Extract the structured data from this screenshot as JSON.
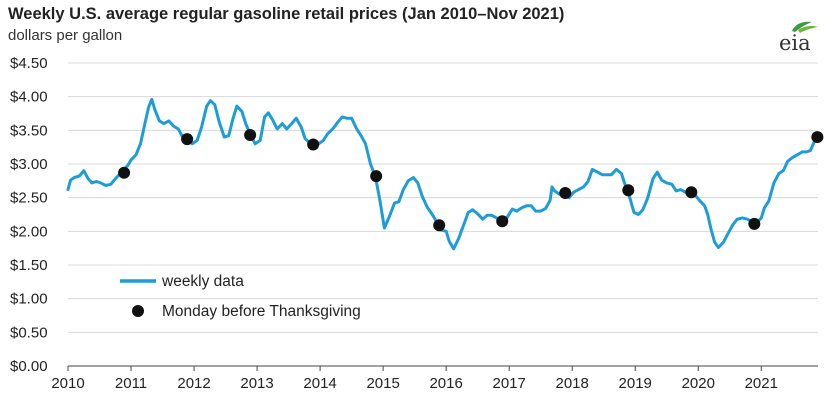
{
  "title": "Weekly U.S. average regular gasoline retail prices (Jan 2010–Nov 2021)",
  "subtitle": "dollars per gallon",
  "logo_text": "eia",
  "colors": {
    "line": "#1e9cd7",
    "marker": "#111111",
    "grid": "#d8d8d8",
    "axis": "#444444"
  },
  "chart_data": {
    "type": "line",
    "title": "Weekly U.S. average regular gasoline retail prices (Jan 2010–Nov 2021)",
    "ylabel": "dollars per gallon",
    "xlim": [
      2010,
      2021.9
    ],
    "ylim": [
      0,
      4.5
    ],
    "grid": true,
    "y_ticks": [
      0,
      0.5,
      1.0,
      1.5,
      2.0,
      2.5,
      3.0,
      3.5,
      4.0,
      4.5
    ],
    "y_tick_labels": [
      "$0.00",
      "$0.50",
      "$1.00",
      "$1.50",
      "$2.00",
      "$2.50",
      "$3.00",
      "$3.50",
      "$4.00",
      "$4.50"
    ],
    "x_ticks": [
      2010,
      2011,
      2012,
      2013,
      2014,
      2015,
      2016,
      2017,
      2018,
      2019,
      2020,
      2021
    ],
    "x_tick_labels": [
      "2010",
      "2011",
      "2012",
      "2013",
      "2014",
      "2015",
      "2016",
      "2017",
      "2018",
      "2019",
      "2020",
      "2021"
    ],
    "legend": [
      {
        "label": "weekly data",
        "kind": "line"
      },
      {
        "label": "Monday before Thanksgiving",
        "kind": "marker"
      }
    ],
    "series": [
      {
        "name": "weekly data",
        "x": [
          2010.0,
          2010.04,
          2010.1,
          2010.18,
          2010.25,
          2010.32,
          2010.38,
          2010.45,
          2010.52,
          2010.6,
          2010.68,
          2010.75,
          2010.85,
          2010.95,
          2011.0,
          2011.08,
          2011.15,
          2011.22,
          2011.28,
          2011.33,
          2011.38,
          2011.45,
          2011.52,
          2011.6,
          2011.68,
          2011.75,
          2011.82,
          2011.9,
          2011.97,
          2012.05,
          2012.12,
          2012.2,
          2012.26,
          2012.33,
          2012.4,
          2012.48,
          2012.55,
          2012.62,
          2012.68,
          2012.72,
          2012.76,
          2012.82,
          2012.9,
          2012.97,
          2013.05,
          2013.12,
          2013.18,
          2013.25,
          2013.32,
          2013.4,
          2013.47,
          2013.55,
          2013.62,
          2013.7,
          2013.76,
          2013.85,
          2013.95,
          2014.05,
          2014.12,
          2014.2,
          2014.28,
          2014.35,
          2014.42,
          2014.5,
          2014.58,
          2014.65,
          2014.72,
          2014.8,
          2014.88,
          2014.95,
          2015.02,
          2015.1,
          2015.18,
          2015.25,
          2015.32,
          2015.4,
          2015.48,
          2015.55,
          2015.62,
          2015.7,
          2015.78,
          2015.85,
          2015.92,
          2016.0,
          2016.05,
          2016.12,
          2016.2,
          2016.28,
          2016.35,
          2016.42,
          2016.5,
          2016.58,
          2016.65,
          2016.72,
          2016.8,
          2016.88,
          2016.95,
          2017.05,
          2017.12,
          2017.2,
          2017.28,
          2017.35,
          2017.42,
          2017.5,
          2017.58,
          2017.65,
          2017.68,
          2017.72,
          2017.8,
          2017.88,
          2017.95,
          2018.02,
          2018.1,
          2018.18,
          2018.25,
          2018.32,
          2018.4,
          2018.48,
          2018.55,
          2018.62,
          2018.7,
          2018.78,
          2018.85,
          2018.92,
          2018.98,
          2019.05,
          2019.12,
          2019.2,
          2019.28,
          2019.35,
          2019.42,
          2019.5,
          2019.58,
          2019.65,
          2019.72,
          2019.8,
          2019.88,
          2019.95,
          2020.02,
          2020.1,
          2020.15,
          2020.2,
          2020.26,
          2020.32,
          2020.4,
          2020.48,
          2020.55,
          2020.62,
          2020.7,
          2020.78,
          2020.85,
          2020.92,
          2021.0,
          2021.05,
          2021.12,
          2021.2,
          2021.28,
          2021.35,
          2021.42,
          2021.5,
          2021.58,
          2021.65,
          2021.72,
          2021.78,
          2021.85,
          2021.9
        ],
        "values": [
          2.62,
          2.76,
          2.8,
          2.82,
          2.9,
          2.78,
          2.72,
          2.74,
          2.72,
          2.68,
          2.7,
          2.78,
          2.88,
          2.98,
          3.06,
          3.14,
          3.3,
          3.6,
          3.85,
          3.96,
          3.8,
          3.64,
          3.6,
          3.64,
          3.56,
          3.52,
          3.4,
          3.36,
          3.3,
          3.35,
          3.55,
          3.86,
          3.94,
          3.88,
          3.62,
          3.4,
          3.42,
          3.68,
          3.86,
          3.82,
          3.78,
          3.6,
          3.42,
          3.3,
          3.35,
          3.7,
          3.76,
          3.65,
          3.52,
          3.6,
          3.52,
          3.6,
          3.68,
          3.55,
          3.38,
          3.3,
          3.28,
          3.35,
          3.45,
          3.52,
          3.62,
          3.7,
          3.68,
          3.68,
          3.52,
          3.42,
          3.3,
          3.0,
          2.8,
          2.45,
          2.05,
          2.22,
          2.42,
          2.44,
          2.62,
          2.75,
          2.8,
          2.72,
          2.52,
          2.36,
          2.25,
          2.14,
          2.02,
          2.0,
          1.85,
          1.74,
          1.9,
          2.1,
          2.28,
          2.32,
          2.26,
          2.18,
          2.24,
          2.24,
          2.2,
          2.16,
          2.18,
          2.33,
          2.3,
          2.35,
          2.38,
          2.38,
          2.3,
          2.3,
          2.34,
          2.46,
          2.66,
          2.6,
          2.55,
          2.55,
          2.5,
          2.58,
          2.62,
          2.66,
          2.74,
          2.92,
          2.88,
          2.84,
          2.84,
          2.84,
          2.92,
          2.86,
          2.66,
          2.48,
          2.28,
          2.25,
          2.32,
          2.5,
          2.78,
          2.88,
          2.76,
          2.72,
          2.7,
          2.6,
          2.62,
          2.58,
          2.6,
          2.54,
          2.46,
          2.38,
          2.25,
          2.04,
          1.84,
          1.76,
          1.84,
          1.98,
          2.1,
          2.18,
          2.2,
          2.18,
          2.15,
          2.12,
          2.2,
          2.35,
          2.45,
          2.72,
          2.86,
          2.9,
          3.04,
          3.1,
          3.14,
          3.18,
          3.18,
          3.2,
          3.35,
          3.4
        ]
      },
      {
        "name": "Monday before Thanksgiving",
        "x": [
          2010.89,
          2011.89,
          2012.89,
          2013.89,
          2014.89,
          2015.89,
          2016.89,
          2017.89,
          2018.89,
          2019.89,
          2020.89,
          2021.89
        ],
        "values": [
          2.87,
          3.37,
          3.43,
          3.29,
          2.82,
          2.09,
          2.15,
          2.57,
          2.61,
          2.58,
          2.11,
          3.4
        ]
      }
    ]
  }
}
